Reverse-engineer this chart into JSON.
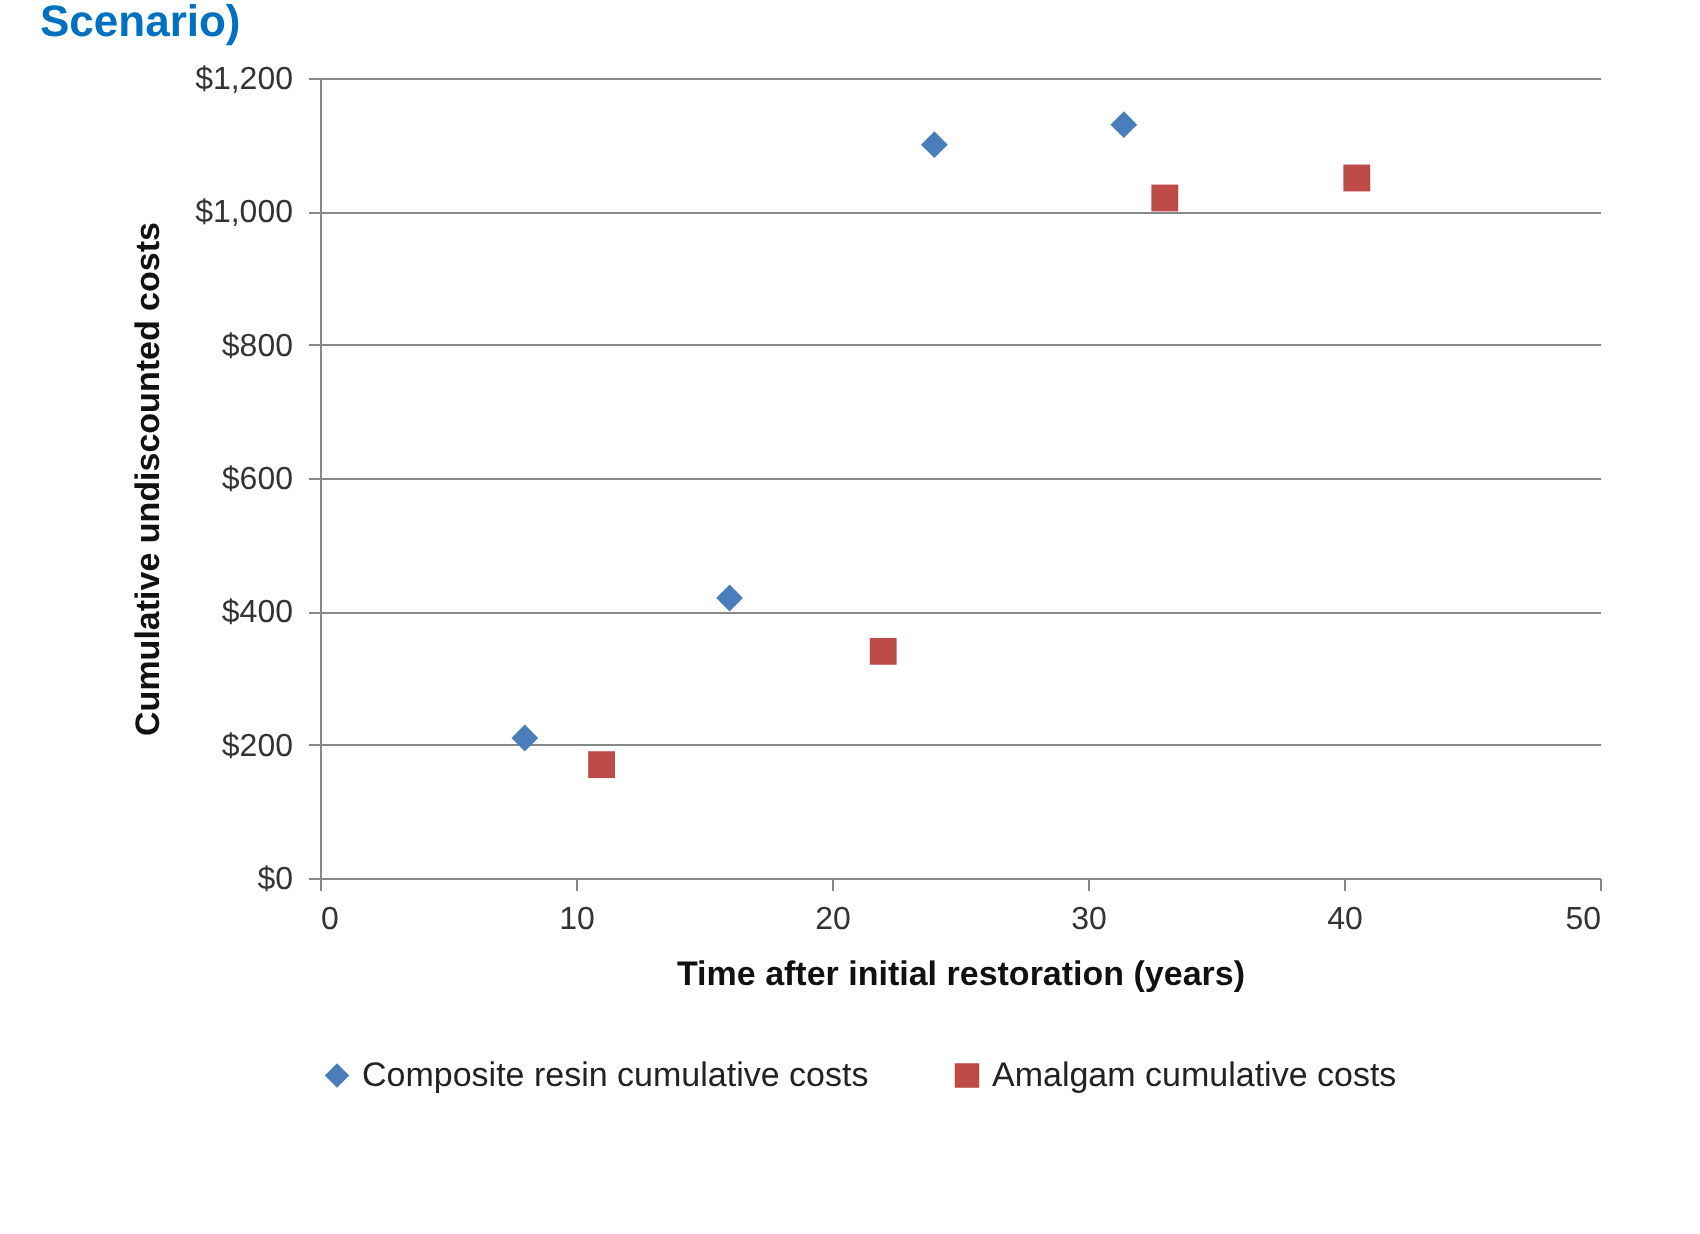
{
  "chart_data": {
    "type": "scatter",
    "title": "Scenario)",
    "xlabel": "Time after initial restoration (years)",
    "ylabel": "Cumulative undiscounted costs",
    "series": [
      {
        "name": "Composite resin cumulative costs",
        "color": "#4a7ebb",
        "marker": "diamond",
        "x": [
          8,
          16,
          24,
          31.4
        ],
        "values": [
          210,
          420,
          1100,
          1130
        ]
      },
      {
        "name": "Amalgam cumulative costs",
        "color": "#be4b48",
        "marker": "square",
        "x": [
          11,
          22,
          33,
          40.5
        ],
        "values": [
          170,
          340,
          1020,
          1050
        ]
      }
    ],
    "xlim": [
      0,
      50
    ],
    "xticks": [
      0,
      10,
      20,
      30,
      40,
      50
    ],
    "ylim": [
      0,
      1200
    ],
    "yticks": [
      {
        "value": 0,
        "label": "$0"
      },
      {
        "value": 200,
        "label": "$200"
      },
      {
        "value": 400,
        "label": "$400"
      },
      {
        "value": 600,
        "label": "$600"
      },
      {
        "value": 800,
        "label": "$800"
      },
      {
        "value": 1000,
        "label": "$1,000"
      },
      {
        "value": 1200,
        "label": "$1,200"
      }
    ],
    "grid": "y",
    "legend": "bottom"
  }
}
